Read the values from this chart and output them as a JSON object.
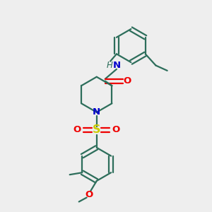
{
  "bg_color": "#eeeeee",
  "bond_color": "#2d6e5b",
  "N_color": "#0000cc",
  "O_color": "#ee0000",
  "S_color": "#cccc00",
  "line_width": 1.6,
  "font_size": 8.5,
  "figsize": [
    3.0,
    3.0
  ],
  "dpi": 100,
  "xlim": [
    0,
    10
  ],
  "ylim": [
    0,
    10
  ]
}
